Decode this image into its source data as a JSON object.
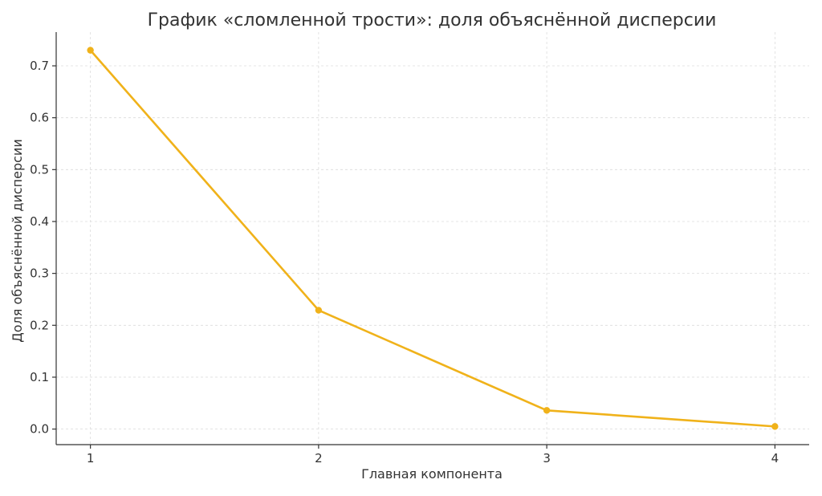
{
  "chart_data": {
    "type": "line",
    "title": "График «сломленной трости»: доля объяснённой дисперсии",
    "xlabel": "Главная компонента",
    "ylabel": "Доля объяснённой дисперсии",
    "x": [
      1,
      2,
      3,
      4
    ],
    "x_tick_labels": [
      "1",
      "2",
      "3",
      "4"
    ],
    "y_ticks": [
      0.0,
      0.1,
      0.2,
      0.3,
      0.4,
      0.5,
      0.6,
      0.7
    ],
    "y_tick_labels": [
      "0.0",
      "0.1",
      "0.2",
      "0.3",
      "0.4",
      "0.5",
      "0.6",
      "0.7"
    ],
    "series": [
      {
        "values": [
          0.73,
          0.229,
          0.036,
          0.005
        ],
        "color": "#f0b21a"
      }
    ],
    "xlim": [
      0.85,
      4.15
    ],
    "ylim": [
      -0.03,
      0.765
    ],
    "grid": true,
    "markers": true
  }
}
